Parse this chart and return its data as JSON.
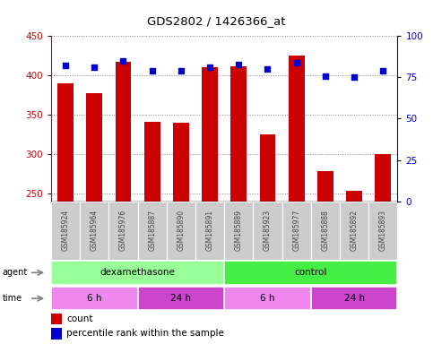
{
  "title": "GDS2802 / 1426366_at",
  "samples": [
    "GSM185924",
    "GSM185964",
    "GSM185976",
    "GSM185887",
    "GSM185890",
    "GSM185891",
    "GSM185889",
    "GSM185923",
    "GSM185977",
    "GSM185888",
    "GSM185892",
    "GSM185893"
  ],
  "counts": [
    390,
    377,
    417,
    341,
    340,
    411,
    412,
    325,
    425,
    278,
    253,
    300
  ],
  "percentiles": [
    82,
    81,
    85,
    79,
    79,
    81,
    83,
    80,
    84,
    76,
    75,
    79
  ],
  "ylim_left": [
    240,
    450
  ],
  "ylim_right": [
    0,
    100
  ],
  "yticks_left": [
    250,
    300,
    350,
    400,
    450
  ],
  "yticks_right": [
    0,
    25,
    50,
    75,
    100
  ],
  "bar_color": "#cc0000",
  "dot_color": "#0000cc",
  "agent_groups": [
    {
      "label": "dexamethasone",
      "start": 0,
      "end": 6,
      "color": "#99ff99"
    },
    {
      "label": "control",
      "start": 6,
      "end": 12,
      "color": "#44ee44"
    }
  ],
  "time_groups": [
    {
      "label": "6 h",
      "start": 0,
      "end": 3,
      "color": "#ee88ee"
    },
    {
      "label": "24 h",
      "start": 3,
      "end": 6,
      "color": "#cc44cc"
    },
    {
      "label": "6 h",
      "start": 6,
      "end": 9,
      "color": "#ee88ee"
    },
    {
      "label": "24 h",
      "start": 9,
      "end": 12,
      "color": "#cc44cc"
    }
  ],
  "left_axis_color": "#cc0000",
  "right_axis_color": "#0000cc",
  "background_color": "#ffffff",
  "grid_color": "#888888",
  "label_box_color": "#cccccc",
  "label_text_color": "#444444"
}
